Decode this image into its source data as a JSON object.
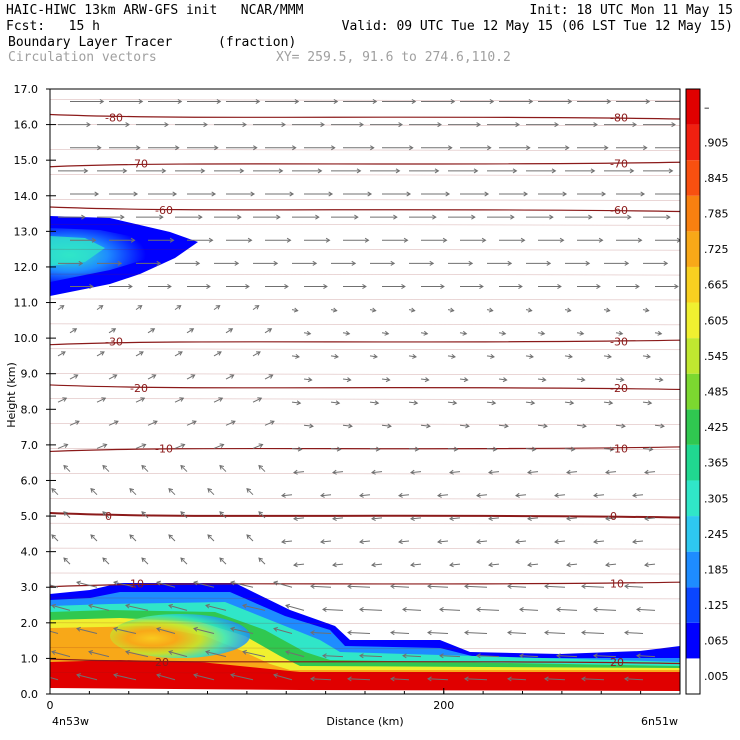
{
  "header": {
    "line1_left": "HAIC-HIWC 13km ARW-GFS init   NCAR/MMM",
    "line1_right": "Init: 18 UTC Mon 11 May 15",
    "line2_left": "Fcst:   15 h",
    "line2_right": "Valid: 09 UTC Tue 12 May 15 (06 LST Tue 12 May 15)",
    "line3_field": "Boundary Layer Tracer",
    "line3_units": "(fraction)",
    "line4_field": "Circulation vectors",
    "line4_xy": "XY= 259.5, 91.6 to 274.6,110.2"
  },
  "chart_data": {
    "type": "heatmap",
    "ylabel": "Height (km)",
    "xlabel": "Distance (km)",
    "x_left_label": "4n53w",
    "x_right_label": "6n51w",
    "xlim": [
      0,
      320
    ],
    "ylim": [
      0,
      17
    ],
    "yticks": [
      "0.0",
      "1.0",
      "2.0",
      "3.0",
      "4.0",
      "5.0",
      "6.0",
      "7.0",
      "8.0",
      "9.0",
      "10.0",
      "11.0",
      "12.0",
      "13.0",
      "14.0",
      "15.0",
      "16.0",
      "17.0"
    ],
    "xticks": [
      {
        "value": 0,
        "label": "0"
      },
      {
        "value": 200,
        "label": "200"
      }
    ],
    "colorbar": {
      "labels": [
        ".005",
        ".065",
        ".125",
        ".185",
        ".245",
        ".305",
        ".365",
        ".425",
        ".485",
        ".545",
        ".605",
        ".665",
        ".725",
        ".785",
        ".845",
        ".905",
        "–"
      ],
      "colors": [
        "#ffffff",
        "#0000ff",
        "#0a46ff",
        "#1e8cff",
        "#2ec8f0",
        "#30e6c8",
        "#20d890",
        "#30c850",
        "#7cd830",
        "#c0e830",
        "#f0f030",
        "#f8d020",
        "#f8a818",
        "#f88010",
        "#f85010",
        "#f02010",
        "#e00000"
      ]
    },
    "contours": [
      {
        "label": "-80",
        "height": 16.2
      },
      {
        "label": "-70",
        "height": 14.9
      },
      {
        "label": "-60",
        "height": 13.6
      },
      {
        "label": "-30",
        "height": 9.9
      },
      {
        "label": "-20",
        "height": 8.6
      },
      {
        "label": "-10",
        "height": 6.9
      },
      {
        "label": "0",
        "height": 5.0
      },
      {
        "label": "10",
        "height": 3.1
      },
      {
        "label": "20",
        "height": 0.9
      }
    ]
  }
}
